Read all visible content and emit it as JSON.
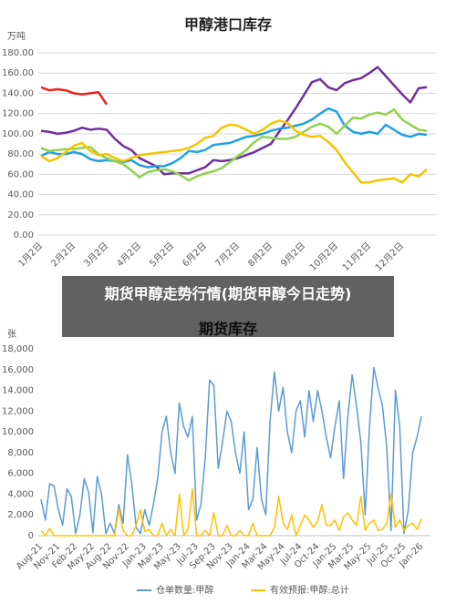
{
  "overlay_title": "期货甲醇走势行情(期货甲醇今日走势)",
  "chart_data": [
    {
      "type": "line",
      "title": "甲醇港口库存",
      "y_unit": "万吨",
      "grid": true,
      "categories": [
        "1月2日",
        null,
        null,
        null,
        "2月2日",
        null,
        null,
        null,
        "3月2日",
        null,
        null,
        null,
        "4月2日",
        null,
        null,
        null,
        "5月2日",
        null,
        null,
        null,
        "6月2日",
        null,
        null,
        null,
        "7月2日",
        null,
        null,
        null,
        "8月2日",
        null,
        null,
        null,
        "9月2日",
        null,
        null,
        null,
        "10月2日",
        null,
        null,
        null,
        "11月2日",
        null,
        null,
        null,
        "12月2日",
        null,
        null,
        null
      ],
      "ylim": [
        0,
        180
      ],
      "yticks": [
        {
          "value": 0,
          "label": "0.00"
        },
        {
          "value": 20,
          "label": "20.00"
        },
        {
          "value": 40,
          "label": "40.00"
        },
        {
          "value": 60,
          "label": "60.00"
        },
        {
          "value": 80,
          "label": "80.00"
        },
        {
          "value": 100,
          "label": "100.00"
        },
        {
          "value": 120,
          "label": "120.00"
        },
        {
          "value": 140,
          "label": "140.00"
        },
        {
          "value": 160,
          "label": "160.00"
        },
        {
          "value": 180,
          "label": "180.00"
        }
      ],
      "series": [
        {
          "color": "#e8231e",
          "values": [
            146,
            143,
            144,
            143,
            140,
            139,
            140,
            141,
            129,
            null,
            null,
            null,
            null,
            null,
            null,
            null,
            null,
            null,
            null,
            null,
            null,
            null,
            null,
            null,
            null,
            null,
            null,
            null,
            null,
            null,
            null,
            null,
            null,
            null,
            null,
            null,
            null,
            null,
            null,
            null,
            null,
            null,
            null,
            null,
            null,
            null,
            null,
            null
          ]
        },
        {
          "color": "#7030a0",
          "values": [
            103,
            102,
            100,
            101,
            103,
            106,
            104,
            105,
            104,
            95,
            88,
            84,
            76,
            72,
            68,
            60,
            61,
            61,
            61,
            64,
            67,
            74,
            73,
            74,
            76,
            79,
            82,
            86,
            90,
            102,
            113,
            125,
            138,
            151,
            154,
            146,
            143,
            150,
            153,
            155,
            160,
            166,
            157,
            148,
            139,
            131,
            145,
            146
          ]
        },
        {
          "color": "#22a0e6",
          "values": [
            78,
            82,
            80,
            80,
            82,
            80,
            75,
            73,
            74,
            73,
            72,
            74,
            69,
            67,
            68,
            68,
            71,
            76,
            83,
            82,
            84,
            89,
            90,
            91,
            94,
            97,
            98,
            100,
            103,
            105,
            106,
            108,
            110,
            114,
            120,
            125,
            122,
            108,
            102,
            100,
            102,
            100,
            109,
            104,
            99,
            97,
            100,
            99
          ]
        },
        {
          "color": "#92d050",
          "values": [
            86,
            83,
            84,
            85,
            85,
            86,
            87,
            80,
            76,
            73,
            70,
            64,
            57,
            62,
            64,
            65,
            63,
            59,
            54,
            58,
            61,
            63,
            66,
            72,
            78,
            84,
            92,
            97,
            96,
            95,
            95,
            97,
            102,
            107,
            110,
            107,
            100,
            108,
            116,
            115,
            119,
            121,
            119,
            124,
            114,
            109,
            104,
            103
          ]
        },
        {
          "color": "#f5c400",
          "values": [
            78,
            73,
            76,
            82,
            88,
            91,
            83,
            79,
            80,
            76,
            73,
            76,
            79,
            80,
            81,
            82,
            83,
            84,
            86,
            90,
            96,
            98,
            106,
            109,
            108,
            104,
            100,
            104,
            110,
            113,
            111,
            103,
            99,
            97,
            98,
            92,
            84,
            72,
            62,
            52,
            52,
            54,
            55,
            56,
            52,
            60,
            58,
            65
          ]
        }
      ]
    },
    {
      "type": "line",
      "title": "期货库存",
      "y_unit": "张",
      "grid": false,
      "legend": "bottom",
      "categories": [
        "Aug-21",
        null,
        null,
        null,
        "Nov-21",
        null,
        null,
        null,
        "Feb-22",
        null,
        null,
        null,
        "May-22",
        null,
        null,
        null,
        "Aug-22",
        null,
        null,
        null,
        "Nov-22",
        null,
        null,
        null,
        "Jan-23",
        null,
        null,
        null,
        "Mar-23",
        null,
        null,
        null,
        "May-23",
        null,
        null,
        null,
        "Jul-23",
        null,
        null,
        null,
        "Sep-23",
        null,
        null,
        null,
        "Nov-23",
        null,
        null,
        null,
        "Jan-24",
        null,
        null,
        null,
        "Mar-24",
        null,
        null,
        null,
        "May-24",
        null,
        null,
        null,
        "Jul-24",
        null,
        null,
        null,
        "Oct-24",
        null,
        null,
        null,
        "Jan-25",
        null,
        null,
        null,
        "Mar-25",
        null,
        null,
        null,
        "May-25",
        null,
        null,
        null,
        "Jul-25",
        null,
        null,
        null,
        "Oct-25",
        null,
        null,
        null,
        "Jan-26"
      ],
      "ylim": [
        0,
        18000
      ],
      "yticks": [
        0,
        {
          "value": 2000,
          "label": "2,000"
        },
        {
          "value": 4000,
          "label": "4,000"
        },
        {
          "value": 6000,
          "label": "6,000"
        },
        {
          "value": 8000,
          "label": "8,000"
        },
        {
          "value": 10000,
          "label": "10,000"
        },
        {
          "value": 12000,
          "label": "12,000"
        },
        {
          "value": 14000,
          "label": "14,000"
        },
        {
          "value": 16000,
          "label": "16,000"
        },
        {
          "value": 18000,
          "label": "18,000"
        }
      ],
      "series": [
        {
          "name": "仓单数量:甲醇",
          "color": "#5b9bd5",
          "values": [
            3500,
            1500,
            5000,
            4800,
            2500,
            1000,
            4500,
            3800,
            200,
            2000,
            5500,
            4200,
            300,
            5700,
            4000,
            200,
            1200,
            200,
            3000,
            1200,
            7800,
            5000,
            800,
            200,
            2500,
            1000,
            3000,
            5500,
            10000,
            11500,
            8000,
            6000,
            12800,
            10500,
            9500,
            11500,
            1500,
            3000,
            7500,
            15000,
            14500,
            6500,
            9000,
            12000,
            11000,
            8000,
            6000,
            10000,
            2500,
            3500,
            8500,
            3500,
            2000,
            11000,
            15800,
            12000,
            14300,
            10000,
            8000,
            12000,
            13000,
            9500,
            14000,
            11000,
            14000,
            12000,
            9500,
            7500,
            10500,
            13000,
            5500,
            11500,
            15500,
            12500,
            9000,
            2000,
            10500,
            16200,
            14200,
            12500,
            8500,
            500,
            14000,
            10500,
            200,
            2500,
            8000,
            9500,
            11500
          ]
        },
        {
          "name": "有效预报:甲醇:总计",
          "color": "#ffc000",
          "values": [
            500,
            0,
            700,
            0,
            0,
            0,
            0,
            0,
            0,
            0,
            0,
            0,
            0,
            0,
            0,
            0,
            0,
            0,
            2600,
            500,
            0,
            0,
            1000,
            2500,
            400,
            600,
            0,
            0,
            1200,
            0,
            600,
            0,
            4000,
            0,
            600,
            4500,
            0,
            0,
            500,
            0,
            2200,
            0,
            0,
            1000,
            0,
            0,
            500,
            0,
            0,
            1200,
            0,
            0,
            0,
            0,
            800,
            3800,
            1200,
            600,
            2000,
            0,
            1000,
            2000,
            1500,
            800,
            1400,
            3000,
            1000,
            1000,
            1500,
            500,
            1800,
            2200,
            1500,
            1000,
            3800,
            500,
            1200,
            1500,
            500,
            600,
            1200,
            4000,
            800,
            1500,
            500,
            1000,
            1200,
            600,
            1600
          ]
        }
      ]
    }
  ]
}
